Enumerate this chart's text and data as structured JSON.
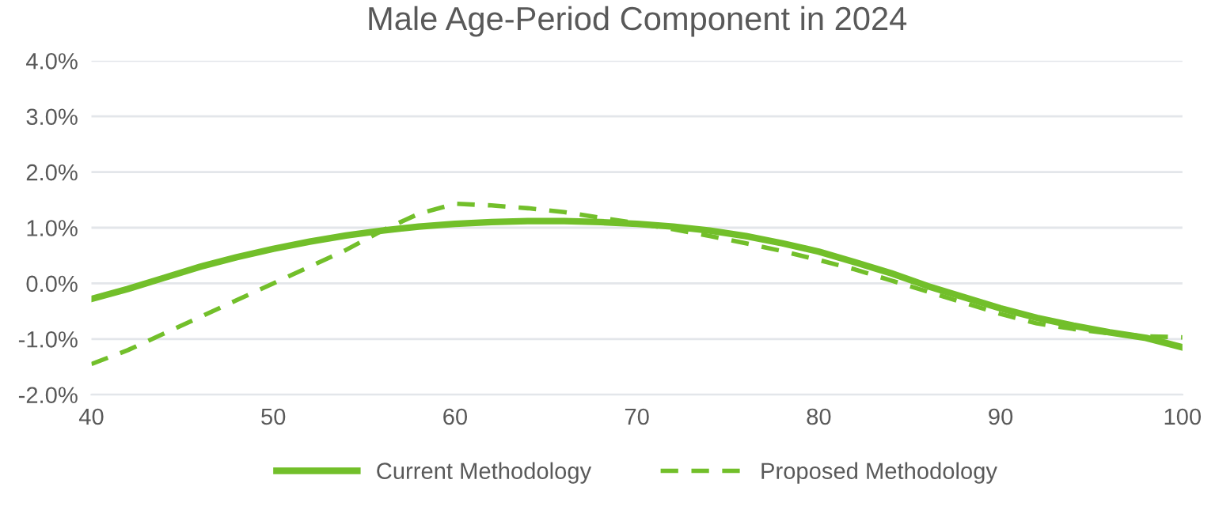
{
  "chart_data": {
    "type": "line",
    "title": "Male Age-Period Component in 2024",
    "x": [
      40,
      42,
      44,
      46,
      48,
      50,
      52,
      54,
      56,
      58,
      60,
      62,
      64,
      66,
      68,
      70,
      72,
      74,
      76,
      78,
      80,
      82,
      84,
      86,
      88,
      90,
      92,
      94,
      96,
      98,
      100
    ],
    "series": [
      {
        "name": "Current Methodology",
        "color": "#72bf2a",
        "line_style": "solid",
        "values": [
          -0.28,
          -0.1,
          0.1,
          0.3,
          0.47,
          0.62,
          0.75,
          0.86,
          0.95,
          1.02,
          1.07,
          1.1,
          1.12,
          1.12,
          1.1,
          1.07,
          1.02,
          0.95,
          0.85,
          0.72,
          0.57,
          0.38,
          0.18,
          -0.05,
          -0.25,
          -0.45,
          -0.62,
          -0.76,
          -0.88,
          -0.98,
          -1.15
        ]
      },
      {
        "name": "Proposed Methodology",
        "color": "#72bf2a",
        "line_style": "dashed",
        "values": [
          -1.45,
          -1.2,
          -0.9,
          -0.6,
          -0.3,
          0.0,
          0.3,
          0.6,
          0.95,
          1.25,
          1.43,
          1.4,
          1.35,
          1.28,
          1.18,
          1.08,
          0.97,
          0.85,
          0.72,
          0.58,
          0.42,
          0.25,
          0.05,
          -0.15,
          -0.35,
          -0.55,
          -0.72,
          -0.82,
          -0.9,
          -0.95,
          -0.97
        ]
      }
    ],
    "xlim": [
      40,
      100
    ],
    "xticks": [
      40,
      50,
      60,
      70,
      80,
      90,
      100
    ],
    "ylim": [
      -2,
      4
    ],
    "yticks": [
      {
        "value": -2,
        "label": "-2.0%"
      },
      {
        "value": -1,
        "label": "-1.0%"
      },
      {
        "value": 0,
        "label": "0.0%"
      },
      {
        "value": 1,
        "label": "1.0%"
      },
      {
        "value": 2,
        "label": "2.0%"
      },
      {
        "value": 3,
        "label": "3.0%"
      },
      {
        "value": 4,
        "label": "4.0%"
      }
    ],
    "grid": "y",
    "legend": "bottom",
    "marker": "none"
  }
}
